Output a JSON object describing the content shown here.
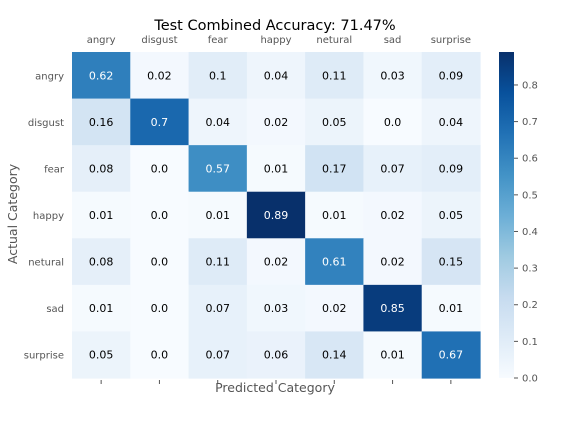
{
  "chart_data": {
    "type": "heatmap",
    "title": "Test Combined Accuracy: 71.47%",
    "xlabel": "Predicted Category",
    "ylabel": "Actual Category",
    "x_categories": [
      "angry",
      "disgust",
      "fear",
      "happy",
      "netural",
      "sad",
      "surprise"
    ],
    "y_categories": [
      "angry",
      "disgust",
      "fear",
      "happy",
      "netural",
      "sad",
      "surprise"
    ],
    "values": [
      [
        "0.62",
        "0.02",
        "0.1",
        "0.04",
        "0.11",
        "0.03",
        "0.09"
      ],
      [
        "0.16",
        "0.7",
        "0.04",
        "0.02",
        "0.05",
        "0.0",
        "0.04"
      ],
      [
        "0.08",
        "0.0",
        "0.57",
        "0.01",
        "0.17",
        "0.07",
        "0.09"
      ],
      [
        "0.01",
        "0.0",
        "0.01",
        "0.89",
        "0.01",
        "0.02",
        "0.05"
      ],
      [
        "0.08",
        "0.0",
        "0.11",
        "0.02",
        "0.61",
        "0.02",
        "0.15"
      ],
      [
        "0.01",
        "0.0",
        "0.07",
        "0.03",
        "0.02",
        "0.85",
        "0.01"
      ],
      [
        "0.05",
        "0.0",
        "0.07",
        "0.06",
        "0.14",
        "0.01",
        "0.67"
      ]
    ],
    "x_tick_position": "top",
    "grid": false,
    "colormap": "Blues",
    "colorbar": {
      "range": [
        0,
        0.89
      ],
      "ticks": [
        "0.0",
        "0.1",
        "0.2",
        "0.3",
        "0.4",
        "0.5",
        "0.6",
        "0.7",
        "0.8"
      ]
    }
  }
}
